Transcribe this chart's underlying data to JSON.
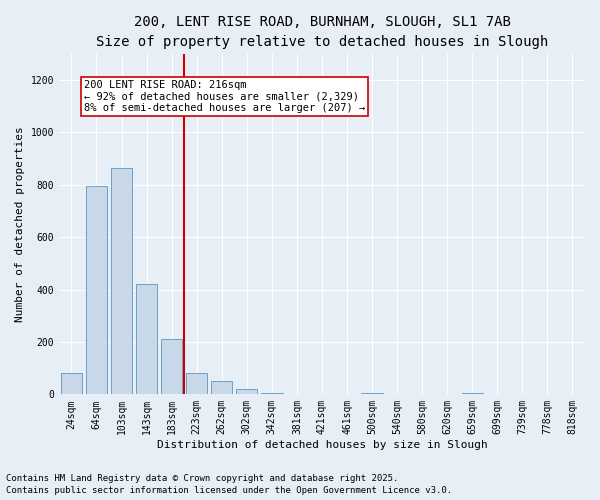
{
  "title_line1": "200, LENT RISE ROAD, BURNHAM, SLOUGH, SL1 7AB",
  "title_line2": "Size of property relative to detached houses in Slough",
  "xlabel": "Distribution of detached houses by size in Slough",
  "ylabel": "Number of detached properties",
  "categories": [
    "24sqm",
    "64sqm",
    "103sqm",
    "143sqm",
    "183sqm",
    "223sqm",
    "262sqm",
    "302sqm",
    "342sqm",
    "381sqm",
    "421sqm",
    "461sqm",
    "500sqm",
    "540sqm",
    "580sqm",
    "620sqm",
    "659sqm",
    "699sqm",
    "739sqm",
    "778sqm",
    "818sqm"
  ],
  "values": [
    80,
    795,
    865,
    420,
    210,
    80,
    50,
    20,
    5,
    0,
    0,
    0,
    5,
    0,
    0,
    0,
    5,
    0,
    0,
    0,
    0
  ],
  "bar_color": "#c8d8e8",
  "bar_edge_color": "#6aa0cc",
  "vline_x_index": 5,
  "vline_color": "#cc0000",
  "annotation_text": "200 LENT RISE ROAD: 216sqm\n← 92% of detached houses are smaller (2,329)\n8% of semi-detached houses are larger (207) →",
  "annotation_box_color": "#ffffff",
  "annotation_box_edge": "#cc0000",
  "ylim": [
    0,
    1300
  ],
  "yticks": [
    0,
    200,
    400,
    600,
    800,
    1000,
    1200
  ],
  "footnote_line1": "Contains HM Land Registry data © Crown copyright and database right 2025.",
  "footnote_line2": "Contains public sector information licensed under the Open Government Licence v3.0.",
  "bg_color": "#e8eef5",
  "plot_bg_color": "#e8eef5",
  "title_fontsize": 10,
  "subtitle_fontsize": 9,
  "axis_label_fontsize": 8,
  "tick_fontsize": 7,
  "annotation_fontsize": 7.5,
  "footnote_fontsize": 6.5
}
